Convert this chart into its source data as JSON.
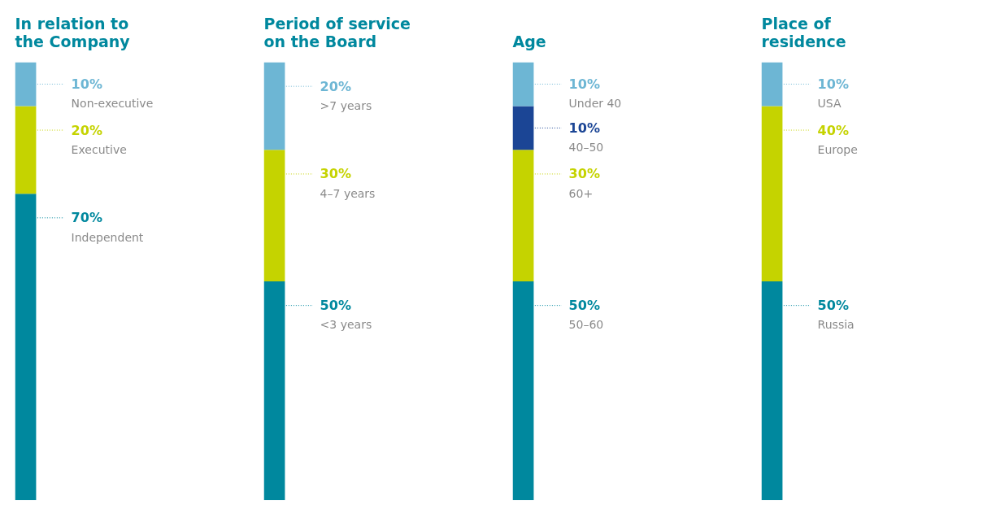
{
  "chart_data": [
    {
      "type": "bar",
      "title": "In relation to the Company",
      "stacked": true,
      "categories": [
        null
      ],
      "legend": false,
      "grid": false,
      "tick_labels": false,
      "series": [
        {
          "name": "Independent",
          "color": "#00889e",
          "values": [
            70
          ],
          "value_labels": [
            "70%"
          ]
        },
        {
          "name": "Executive",
          "color": "#c5d300",
          "values": [
            20
          ],
          "value_labels": [
            "20%"
          ]
        },
        {
          "name": "Non-executive",
          "color": "#6db6d4",
          "values": [
            10
          ],
          "value_labels": [
            "10%"
          ]
        }
      ]
    },
    {
      "type": "bar",
      "title": "Period of service on the Board",
      "stacked": true,
      "categories": [
        null
      ],
      "legend": false,
      "grid": false,
      "tick_labels": false,
      "series": [
        {
          "name": "<3 years",
          "color": "#00889e",
          "values": [
            50
          ],
          "value_labels": [
            "50%"
          ]
        },
        {
          "name": "4–7 years",
          "color": "#c5d300",
          "values": [
            30
          ],
          "value_labels": [
            "30%"
          ]
        },
        {
          "name": ">7 years",
          "color": "#6db6d4",
          "values": [
            20
          ],
          "value_labels": [
            "20%"
          ]
        }
      ]
    },
    {
      "type": "bar",
      "title": "Age",
      "stacked": true,
      "categories": [
        null
      ],
      "legend": false,
      "grid": false,
      "tick_labels": false,
      "series": [
        {
          "name": "50–60",
          "color": "#00889e",
          "values": [
            50
          ],
          "value_labels": [
            "50%"
          ]
        },
        {
          "name": "60+",
          "color": "#c5d300",
          "values": [
            30
          ],
          "value_labels": [
            "30%"
          ]
        },
        {
          "name": "40–50",
          "color": "#1b4595",
          "values": [
            10
          ],
          "value_labels": [
            "10%"
          ]
        },
        {
          "name": "Under 40",
          "color": "#6db6d4",
          "values": [
            10
          ],
          "value_labels": [
            "10%"
          ]
        }
      ]
    },
    {
      "type": "bar",
      "title": "Place of residence",
      "stacked": true,
      "categories": [
        null
      ],
      "legend": false,
      "grid": false,
      "tick_labels": false,
      "series": [
        {
          "name": "Russia",
          "color": "#00889e",
          "values": [
            50
          ],
          "value_labels": [
            "50%"
          ]
        },
        {
          "name": "Europe",
          "color": "#c5d300",
          "values": [
            40
          ],
          "value_labels": [
            "40%"
          ]
        },
        {
          "name": "USA",
          "color": "#6db6d4",
          "values": [
            10
          ],
          "value_labels": [
            "10%"
          ]
        }
      ]
    }
  ]
}
